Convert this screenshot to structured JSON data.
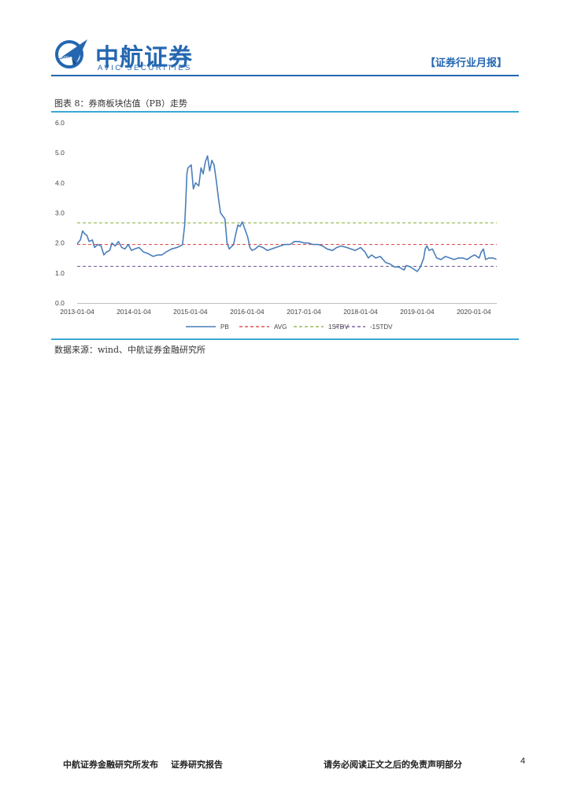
{
  "header": {
    "logo_cn": "中航证券",
    "logo_en": "AVIC SECURITIES",
    "logo_mark_text": "AVIC",
    "report_type": "【证券行业月报】",
    "brand_color": "#2467b0"
  },
  "figure": {
    "title": "图表 8：券商板块估值（PB）走势",
    "source": "数据来源：wind、中航证券金融研究所"
  },
  "chart_data": {
    "type": "line",
    "title": "",
    "xlabel": "",
    "ylabel": "",
    "ylim": [
      0,
      6
    ],
    "yticks": [
      "0.0",
      "1.0",
      "2.0",
      "3.0",
      "4.0",
      "5.0",
      "6.0"
    ],
    "xticks": [
      "2013-01-04",
      "2014-01-04",
      "2015-01-04",
      "2016-01-04",
      "2017-01-04",
      "2018-01-04",
      "2019-01-04",
      "2020-01-04"
    ],
    "xrange": [
      "2013-01-04",
      "2020-05-31"
    ],
    "grid": false,
    "legend_position": "bottom",
    "series": [
      {
        "name": "PB",
        "color": "#4a7ebb",
        "style": "solid",
        "points": [
          [
            "2013-01-04",
            1.97
          ],
          [
            "2013-01-25",
            2.1
          ],
          [
            "2013-02-08",
            2.4
          ],
          [
            "2013-02-22",
            2.3
          ],
          [
            "2013-03-08",
            2.25
          ],
          [
            "2013-03-22",
            2.05
          ],
          [
            "2013-04-12",
            2.1
          ],
          [
            "2013-04-26",
            1.85
          ],
          [
            "2013-05-17",
            1.95
          ],
          [
            "2013-06-07",
            1.9
          ],
          [
            "2013-06-25",
            1.6
          ],
          [
            "2013-07-12",
            1.7
          ],
          [
            "2013-08-02",
            1.75
          ],
          [
            "2013-08-16",
            2.0
          ],
          [
            "2013-09-06",
            1.9
          ],
          [
            "2013-09-27",
            2.05
          ],
          [
            "2013-10-18",
            1.85
          ],
          [
            "2013-11-08",
            1.8
          ],
          [
            "2013-11-29",
            1.95
          ],
          [
            "2013-12-20",
            1.75
          ],
          [
            "2014-01-10",
            1.8
          ],
          [
            "2014-02-07",
            1.85
          ],
          [
            "2014-03-07",
            1.7
          ],
          [
            "2014-04-04",
            1.65
          ],
          [
            "2014-05-09",
            1.55
          ],
          [
            "2014-06-06",
            1.6
          ],
          [
            "2014-07-04",
            1.6
          ],
          [
            "2014-08-01",
            1.7
          ],
          [
            "2014-09-05",
            1.8
          ],
          [
            "2014-10-10",
            1.85
          ],
          [
            "2014-10-31",
            1.9
          ],
          [
            "2014-11-14",
            1.95
          ],
          [
            "2014-11-28",
            2.6
          ],
          [
            "2014-12-05",
            3.4
          ],
          [
            "2014-12-12",
            4.3
          ],
          [
            "2014-12-19",
            4.5
          ],
          [
            "2015-01-09",
            4.6
          ],
          [
            "2015-01-23",
            3.8
          ],
          [
            "2015-02-06",
            4.0
          ],
          [
            "2015-02-27",
            3.9
          ],
          [
            "2015-03-13",
            4.5
          ],
          [
            "2015-03-27",
            4.3
          ],
          [
            "2015-04-10",
            4.7
          ],
          [
            "2015-04-24",
            4.9
          ],
          [
            "2015-05-08",
            4.4
          ],
          [
            "2015-05-22",
            4.75
          ],
          [
            "2015-06-05",
            4.6
          ],
          [
            "2015-06-19",
            4.1
          ],
          [
            "2015-07-03",
            3.5
          ],
          [
            "2015-07-17",
            3.0
          ],
          [
            "2015-07-31",
            2.9
          ],
          [
            "2015-08-14",
            2.8
          ],
          [
            "2015-08-28",
            2.0
          ],
          [
            "2015-09-11",
            1.8
          ],
          [
            "2015-10-09",
            1.95
          ],
          [
            "2015-10-23",
            2.3
          ],
          [
            "2015-11-06",
            2.6
          ],
          [
            "2015-11-20",
            2.55
          ],
          [
            "2015-12-04",
            2.7
          ],
          [
            "2015-12-18",
            2.5
          ],
          [
            "2016-01-08",
            2.2
          ],
          [
            "2016-01-22",
            1.85
          ],
          [
            "2016-02-05",
            1.75
          ],
          [
            "2016-02-26",
            1.8
          ],
          [
            "2016-03-18",
            1.9
          ],
          [
            "2016-04-15",
            1.85
          ],
          [
            "2016-05-13",
            1.75
          ],
          [
            "2016-06-10",
            1.8
          ],
          [
            "2016-07-08",
            1.85
          ],
          [
            "2016-08-05",
            1.9
          ],
          [
            "2016-09-02",
            1.95
          ],
          [
            "2016-10-07",
            1.95
          ],
          [
            "2016-11-04",
            2.05
          ],
          [
            "2016-12-02",
            2.05
          ],
          [
            "2017-01-06",
            2.0
          ],
          [
            "2017-02-03",
            2.0
          ],
          [
            "2017-03-03",
            1.95
          ],
          [
            "2017-04-07",
            1.95
          ],
          [
            "2017-05-05",
            1.9
          ],
          [
            "2017-06-02",
            1.8
          ],
          [
            "2017-07-07",
            1.75
          ],
          [
            "2017-08-04",
            1.85
          ],
          [
            "2017-09-01",
            1.9
          ],
          [
            "2017-10-06",
            1.85
          ],
          [
            "2017-11-03",
            1.8
          ],
          [
            "2017-12-01",
            1.75
          ],
          [
            "2018-01-05",
            1.85
          ],
          [
            "2018-02-02",
            1.7
          ],
          [
            "2018-02-23",
            1.5
          ],
          [
            "2018-03-16",
            1.6
          ],
          [
            "2018-04-13",
            1.5
          ],
          [
            "2018-05-11",
            1.55
          ],
          [
            "2018-06-15",
            1.35
          ],
          [
            "2018-07-13",
            1.3
          ],
          [
            "2018-08-10",
            1.2
          ],
          [
            "2018-09-07",
            1.2
          ],
          [
            "2018-10-12",
            1.1
          ],
          [
            "2018-10-26",
            1.25
          ],
          [
            "2018-11-23",
            1.2
          ],
          [
            "2018-12-21",
            1.1
          ],
          [
            "2019-01-04",
            1.05
          ],
          [
            "2019-01-25",
            1.2
          ],
          [
            "2019-02-15",
            1.5
          ],
          [
            "2019-02-25",
            1.8
          ],
          [
            "2019-03-08",
            1.9
          ],
          [
            "2019-03-22",
            1.75
          ],
          [
            "2019-04-12",
            1.8
          ],
          [
            "2019-05-10",
            1.5
          ],
          [
            "2019-06-07",
            1.45
          ],
          [
            "2019-07-05",
            1.55
          ],
          [
            "2019-08-02",
            1.5
          ],
          [
            "2019-08-30",
            1.45
          ],
          [
            "2019-09-27",
            1.5
          ],
          [
            "2019-10-25",
            1.5
          ],
          [
            "2019-11-22",
            1.45
          ],
          [
            "2019-12-20",
            1.55
          ],
          [
            "2020-01-10",
            1.6
          ],
          [
            "2020-02-07",
            1.5
          ],
          [
            "2020-02-21",
            1.7
          ],
          [
            "2020-03-06",
            1.8
          ],
          [
            "2020-03-20",
            1.45
          ],
          [
            "2020-04-10",
            1.5
          ],
          [
            "2020-05-08",
            1.5
          ],
          [
            "2020-05-29",
            1.45
          ]
        ]
      },
      {
        "name": "AVG",
        "color": "#e05555",
        "style": "dashed",
        "value": 1.95
      },
      {
        "name": "1STDV",
        "color": "#9bbb59",
        "style": "dashed",
        "value": 2.67
      },
      {
        "name": "-1STDV",
        "color": "#8064a2",
        "style": "dashed",
        "value": 1.22
      }
    ]
  },
  "footer": {
    "publisher": "中航证券金融研究所发布",
    "report_kind": "证券研究报告",
    "disclaimer": "请务必阅读正文之后的免责声明部分",
    "page_number": "4"
  }
}
